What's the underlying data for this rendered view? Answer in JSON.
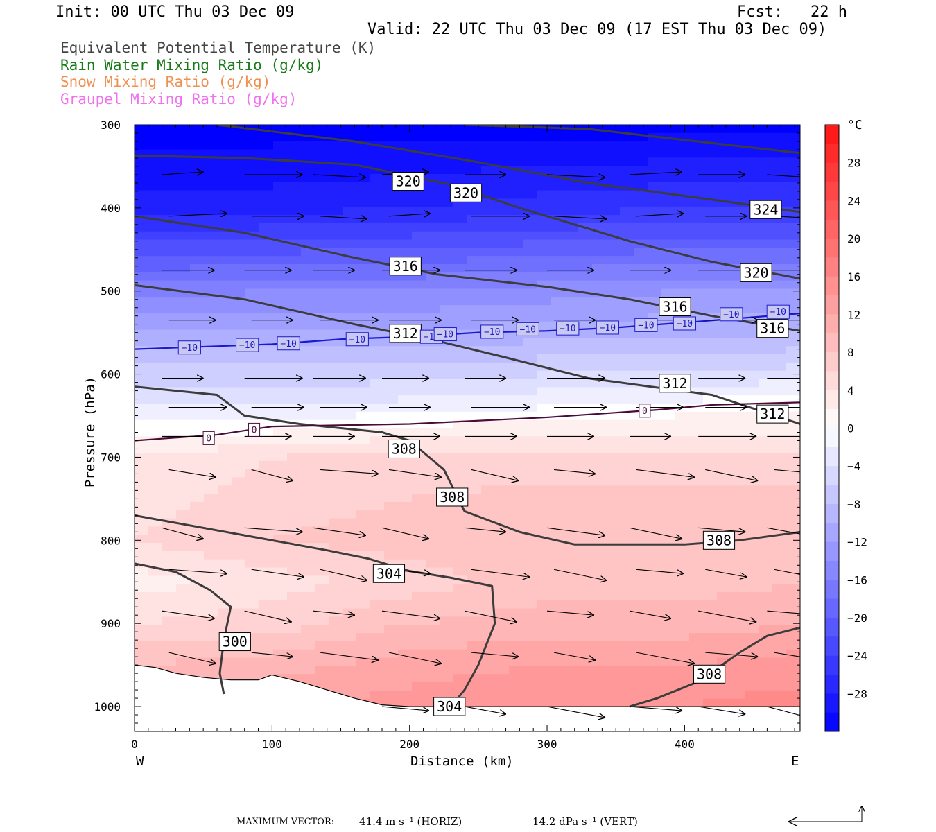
{
  "header": {
    "init": "Init: 00 UTC Thu 03 Dec 09",
    "fcst": "Fcst:   22 h",
    "valid": "Valid: 22 UTC Thu 03 Dec 09 (17 EST Thu 03 Dec 09)"
  },
  "legend": [
    {
      "label": "Equivalent Potential Temperature (K)",
      "color": "#444444"
    },
    {
      "label": "Rain Water Mixing Ratio (g/kg)",
      "color": "#1a7a1a"
    },
    {
      "label": "Snow Mixing Ratio (g/kg)",
      "color": "#f09050"
    },
    {
      "label": "Graupel Mixing Ratio (g/kg)",
      "color": "#f070f0"
    }
  ],
  "footer": {
    "max_vector": "MAXIMUM VECTOR:",
    "horiz": "41.4 m s⁻¹ (HORIZ)",
    "vert": "14.2 dPa s⁻¹ (VERT)"
  },
  "chart_data": {
    "type": "contour",
    "xlabel": "Distance (km)",
    "ylabel": "Pressure (hPa)",
    "xlim": [
      0,
      484
    ],
    "ylim": [
      1030,
      300
    ],
    "xticks": [
      0,
      100,
      200,
      300,
      400
    ],
    "yticks": [
      300,
      400,
      500,
      600,
      700,
      800,
      900,
      1000
    ],
    "x_end_labels": {
      "left": "W",
      "right": "E"
    },
    "colorbar": {
      "unit": "°C",
      "range": [
        -32,
        32
      ],
      "ticks": [
        28,
        24,
        20,
        16,
        12,
        8,
        4,
        0,
        -4,
        -8,
        -12,
        -16,
        -20,
        -24,
        -28
      ]
    },
    "temperature_field": {
      "columns_x": [
        0,
        100,
        200,
        300,
        400,
        484
      ],
      "levels": [
        {
          "p": 300,
          "t": [
            -32,
            -32,
            -32,
            -32,
            -32,
            -32
          ]
        },
        {
          "p": 400,
          "t": [
            -28,
            -28,
            -27,
            -26,
            -25,
            -25
          ]
        },
        {
          "p": 500,
          "t": [
            -16,
            -15,
            -15,
            -14,
            -13,
            -13
          ]
        },
        {
          "p": 560,
          "t": [
            -10,
            -10,
            -10,
            -9,
            -9,
            -8
          ]
        },
        {
          "p": 600,
          "t": [
            -6,
            -6,
            -6,
            -5,
            -5,
            -4
          ]
        },
        {
          "p": 640,
          "t": [
            -3,
            -3,
            -2,
            -1,
            0,
            1
          ]
        },
        {
          "p": 670,
          "t": [
            0,
            1,
            2,
            3,
            3,
            3
          ]
        },
        {
          "p": 700,
          "t": [
            3,
            5,
            6,
            6,
            6,
            6
          ]
        },
        {
          "p": 800,
          "t": [
            5,
            7,
            8,
            9,
            9,
            9
          ]
        },
        {
          "p": 850,
          "t": [
            2,
            4,
            6,
            8,
            8,
            9
          ]
        },
        {
          "p": 900,
          "t": [
            5,
            6,
            9,
            10,
            10,
            11
          ]
        },
        {
          "p": 950,
          "t": [
            9,
            10,
            12,
            13,
            13,
            14
          ]
        },
        {
          "p": 1000,
          "t": [
            12,
            13,
            14,
            15,
            15,
            16
          ]
        }
      ]
    },
    "isotherms": [
      {
        "label": "-10",
        "points": [
          [
            0,
            570
          ],
          [
            100,
            564
          ],
          [
            150,
            558
          ],
          [
            200,
            555
          ],
          [
            250,
            550
          ],
          [
            300,
            548
          ],
          [
            350,
            544
          ],
          [
            400,
            538
          ],
          [
            484,
            527
          ]
        ],
        "label_positions": [
          [
            40,
            568
          ],
          [
            82,
            565
          ],
          [
            112,
            563
          ],
          [
            162,
            558
          ],
          [
            216,
            555
          ],
          [
            226,
            552
          ],
          [
            260,
            549
          ],
          [
            286,
            546
          ],
          [
            315,
            545
          ],
          [
            344,
            544
          ],
          [
            372,
            541
          ],
          [
            400,
            539
          ],
          [
            434,
            528
          ],
          [
            468,
            525
          ]
        ]
      },
      {
        "label": "0",
        "points": [
          [
            0,
            680
          ],
          [
            60,
            673
          ],
          [
            100,
            663
          ],
          [
            200,
            660
          ],
          [
            300,
            652
          ],
          [
            380,
            643
          ],
          [
            420,
            637
          ],
          [
            484,
            634
          ]
        ],
        "label_positions": [
          [
            54,
            677
          ],
          [
            87,
            667
          ],
          [
            371,
            644
          ]
        ]
      }
    ],
    "theta_e_contours": [
      {
        "label": "320",
        "points": [
          [
            60,
            300
          ],
          [
            160,
            320
          ],
          [
            250,
            345
          ],
          [
            330,
            370
          ],
          [
            420,
            390
          ],
          [
            484,
            405
          ]
        ],
        "label_positions": [
          [
            199,
            368
          ],
          [
            241,
            382
          ]
        ]
      },
      {
        "label": "324",
        "points": [
          [
            240,
            300
          ],
          [
            330,
            305
          ],
          [
            420,
            322
          ],
          [
            484,
            334
          ]
        ],
        "label_positions": [
          [
            459,
            402
          ]
        ]
      },
      {
        "label": "320",
        "points": [
          [
            0,
            337
          ],
          [
            80,
            340
          ],
          [
            160,
            348
          ],
          [
            230,
            372
          ],
          [
            280,
            400
          ],
          [
            360,
            440
          ],
          [
            420,
            465
          ],
          [
            484,
            485
          ]
        ],
        "label_positions": [
          [
            452,
            478
          ]
        ]
      },
      {
        "label": "316",
        "points": [
          [
            0,
            410
          ],
          [
            80,
            430
          ],
          [
            160,
            460
          ],
          [
            220,
            480
          ],
          [
            300,
            495
          ],
          [
            360,
            510
          ],
          [
            420,
            530
          ],
          [
            484,
            548
          ]
        ],
        "label_positions": [
          [
            197,
            470
          ],
          [
            393,
            519
          ],
          [
            464,
            545
          ]
        ]
      },
      {
        "label": "312",
        "points": [
          [
            0,
            493
          ],
          [
            80,
            510
          ],
          [
            160,
            540
          ],
          [
            220,
            560
          ],
          [
            270,
            580
          ],
          [
            330,
            605
          ],
          [
            420,
            625
          ],
          [
            484,
            660
          ]
        ],
        "label_positions": [
          [
            197,
            551
          ],
          [
            393,
            611
          ],
          [
            464,
            648
          ]
        ]
      },
      {
        "label": "308",
        "points": [
          [
            0,
            615
          ],
          [
            60,
            625
          ],
          [
            80,
            650
          ],
          [
            120,
            660
          ],
          [
            180,
            670
          ],
          [
            200,
            680
          ],
          [
            225,
            715
          ],
          [
            240,
            765
          ],
          [
            280,
            790
          ],
          [
            320,
            805
          ],
          [
            400,
            805
          ],
          [
            440,
            800
          ],
          [
            484,
            790
          ]
        ],
        "label_positions": [
          [
            196,
            690
          ],
          [
            231,
            748
          ],
          [
            425,
            800
          ]
        ]
      },
      {
        "label": "304",
        "points": [
          [
            0,
            770
          ],
          [
            60,
            788
          ],
          [
            100,
            800
          ],
          [
            140,
            812
          ],
          [
            170,
            822
          ],
          [
            200,
            837
          ],
          [
            230,
            845
          ],
          [
            260,
            855
          ],
          [
            262,
            900
          ],
          [
            250,
            950
          ],
          [
            240,
            980
          ],
          [
            230,
            1000
          ]
        ],
        "label_positions": [
          [
            185,
            840
          ],
          [
            229,
            1000
          ]
        ]
      },
      {
        "label": "300",
        "points": [
          [
            0,
            828
          ],
          [
            30,
            838
          ],
          [
            55,
            860
          ],
          [
            70,
            880
          ],
          [
            65,
            920
          ],
          [
            62,
            960
          ],
          [
            65,
            985
          ]
        ],
        "label_positions": [
          [
            73,
            922
          ]
        ]
      },
      {
        "label": "308",
        "points": [
          [
            360,
            1000
          ],
          [
            380,
            990
          ],
          [
            410,
            970
          ],
          [
            440,
            935
          ],
          [
            460,
            915
          ],
          [
            484,
            905
          ]
        ],
        "label_positions": [
          [
            418,
            961
          ]
        ]
      }
    ],
    "wind_vectors": {
      "levels_p": [
        360,
        410,
        475,
        535,
        605,
        640,
        675,
        715,
        785,
        835,
        885,
        935,
        1000
      ],
      "x": [
        20,
        80,
        130,
        180,
        240,
        300,
        360,
        410,
        460
      ],
      "note": "horizontal component ~ westerly, weak descending component in lower levels"
    }
  }
}
